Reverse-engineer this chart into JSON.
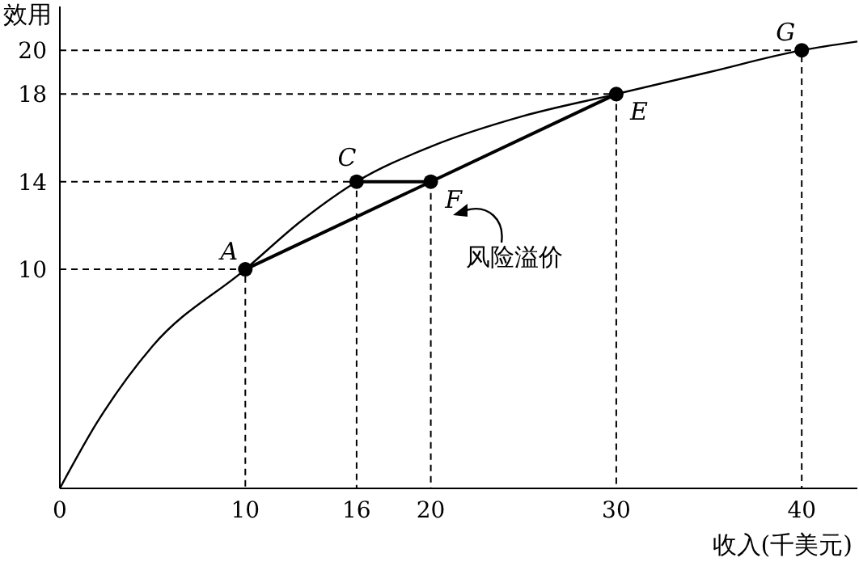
{
  "chart_data": {
    "type": "line",
    "xlabel": "收入(千美元)",
    "ylabel": "效用",
    "xlim": [
      0,
      43
    ],
    "ylim": [
      0,
      22
    ],
    "xticks": [
      0,
      10,
      16,
      20,
      30,
      40
    ],
    "yticks": [
      10,
      14,
      18,
      20
    ],
    "series": [
      {
        "x": [
          0,
          2,
          5,
          10,
          13,
          16,
          20,
          25,
          30,
          35,
          40,
          43
        ],
        "values": [
          0,
          3,
          6.5,
          10,
          12.2,
          14,
          15.6,
          17,
          18,
          19,
          20,
          20.4
        ],
        "color": "#000000",
        "marker": "none",
        "line_style": "solid"
      },
      {
        "type": "line",
        "x": [
          10,
          30
        ],
        "values": [
          10,
          18
        ],
        "color": "#000000",
        "marker": "none",
        "line_style": "solid"
      },
      {
        "type": "line",
        "x": [
          16,
          20
        ],
        "values": [
          14,
          14
        ],
        "color": "#000000",
        "marker": "none",
        "line_style": "solid"
      },
      {
        "type": "line",
        "x": [
          0,
          10,
          10
        ],
        "values": [
          10,
          10,
          0
        ],
        "color": "#000000",
        "marker": "none",
        "line_style": "dashed"
      },
      {
        "type": "line",
        "x": [
          0,
          16,
          16
        ],
        "values": [
          14,
          14,
          0
        ],
        "color": "#000000",
        "marker": "none",
        "line_style": "dashed"
      },
      {
        "type": "line",
        "x": [
          20,
          20
        ],
        "values": [
          14,
          0
        ],
        "color": "#000000",
        "marker": "none",
        "line_style": "dashed"
      },
      {
        "type": "line",
        "x": [
          0,
          30,
          30
        ],
        "values": [
          18,
          18,
          0
        ],
        "color": "#000000",
        "marker": "none",
        "line_style": "dashed"
      },
      {
        "type": "line",
        "x": [
          0,
          40,
          40
        ],
        "values": [
          20,
          20,
          0
        ],
        "color": "#000000",
        "marker": "none",
        "line_style": "dashed"
      },
      {
        "type": "scatter",
        "x": [
          10,
          16,
          20,
          30,
          40
        ],
        "values": [
          10,
          14,
          14,
          18,
          20
        ],
        "color": "#000000",
        "marker": "circle"
      }
    ],
    "annotations": [
      {
        "text": "A",
        "x": 10,
        "y": 10
      },
      {
        "text": "C",
        "x": 16,
        "y": 14
      },
      {
        "text": "F",
        "x": 20,
        "y": 14
      },
      {
        "text": "E",
        "x": 30,
        "y": 18
      },
      {
        "text": "G",
        "x": 40,
        "y": 20
      },
      "风险溢价"
    ]
  }
}
